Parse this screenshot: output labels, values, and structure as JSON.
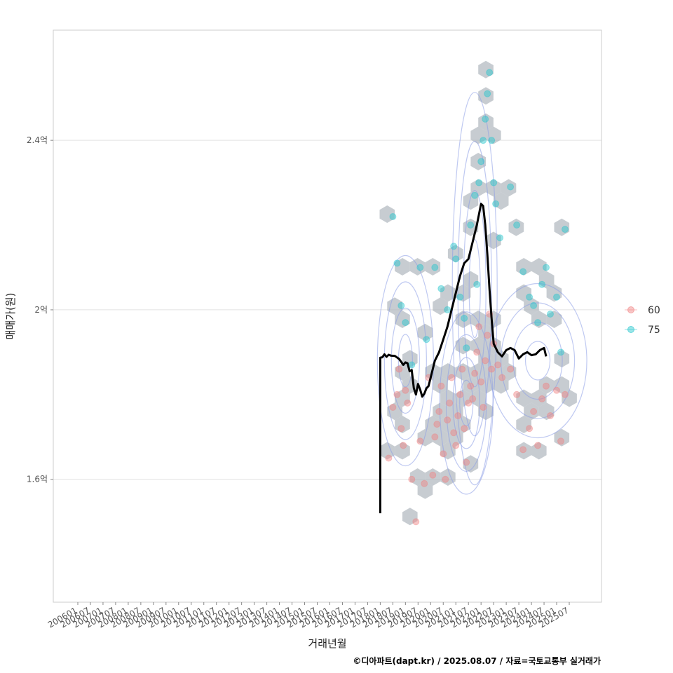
{
  "chart_data": {
    "type": "scatter",
    "xlabel": "거래년월",
    "ylabel": "매매가(원)",
    "caption": "©디아파트(dapt.kr) / 2025.08.07 / 자료=국토교통부 실거래가",
    "x_ticks": [
      "200601",
      "200607",
      "200701",
      "200707",
      "200801",
      "200807",
      "200901",
      "200907",
      "201001",
      "201007",
      "201101",
      "201107",
      "201201",
      "201207",
      "201301",
      "201307",
      "201401",
      "201407",
      "201501",
      "201507",
      "201601",
      "201607",
      "201701",
      "201707",
      "201801",
      "201807",
      "201901",
      "201907",
      "202001",
      "202007",
      "202101",
      "202107",
      "202201",
      "202207",
      "202301",
      "202307",
      "202401",
      "202407",
      "202501",
      "202507"
    ],
    "x_range": [
      "2006-01",
      "2025-07"
    ],
    "y_ticks": [
      {
        "label": "1.6억",
        "value": 160000000
      },
      {
        "label": "2억",
        "value": 200000000
      },
      {
        "label": "2.4억",
        "value": 240000000
      }
    ],
    "ylim": [
      131000000,
      266000000
    ],
    "grid": true,
    "legend_position": "right",
    "colors": {
      "s60": "#f08080",
      "s75": "#22c5cc",
      "hex": "#a9b0b8",
      "contour": "#8a9de6",
      "trend": "#000000",
      "grid": "#e2e2e2",
      "panel_border": "#cccccc"
    },
    "series": [
      {
        "name": "60",
        "color": "#f08080",
        "points": [
          [
            "2018-05",
            165
          ],
          [
            "2018-07",
            177
          ],
          [
            "2018-09",
            180
          ],
          [
            "2018-11",
            172
          ],
          [
            "2019-01",
            181
          ],
          [
            "2019-02",
            178
          ],
          [
            "2018-10",
            186
          ],
          [
            "2018-12",
            168
          ],
          [
            "2019-04",
            160
          ],
          [
            "2019-06",
            150
          ],
          [
            "2019-08",
            169
          ],
          [
            "2019-10",
            159
          ],
          [
            "2019-12",
            184
          ],
          [
            "2020-02",
            161
          ],
          [
            "2020-03",
            170
          ],
          [
            "2020-04",
            173
          ],
          [
            "2020-05",
            176
          ],
          [
            "2020-06",
            182
          ],
          [
            "2020-07",
            166
          ],
          [
            "2020-08",
            160
          ],
          [
            "2020-09",
            174
          ],
          [
            "2020-10",
            178
          ],
          [
            "2020-11",
            184
          ],
          [
            "2020-12",
            171
          ],
          [
            "2021-01",
            168
          ],
          [
            "2021-02",
            175
          ],
          [
            "2021-03",
            180
          ],
          [
            "2021-04",
            186
          ],
          [
            "2021-05",
            172
          ],
          [
            "2021-06",
            164
          ],
          [
            "2021-07",
            178
          ],
          [
            "2021-08",
            182
          ],
          [
            "2021-09",
            179
          ],
          [
            "2021-10",
            185
          ],
          [
            "2021-11",
            190
          ],
          [
            "2021-12",
            196
          ],
          [
            "2022-01",
            183
          ],
          [
            "2022-02",
            177
          ],
          [
            "2022-03",
            188
          ],
          [
            "2022-04",
            194
          ],
          [
            "2022-05",
            199
          ],
          [
            "2022-06",
            186
          ],
          [
            "2022-07",
            192
          ],
          [
            "2022-09",
            187
          ],
          [
            "2022-11",
            184
          ],
          [
            "2023-03",
            186
          ],
          [
            "2023-06",
            180
          ],
          [
            "2023-09",
            167
          ],
          [
            "2023-12",
            172
          ],
          [
            "2024-02",
            176
          ],
          [
            "2024-04",
            168
          ],
          [
            "2024-06",
            179
          ],
          [
            "2024-08",
            182
          ],
          [
            "2024-10",
            175
          ],
          [
            "2025-01",
            181
          ],
          [
            "2025-03",
            169
          ],
          [
            "2025-05",
            180
          ]
        ]
      },
      {
        "name": "75",
        "color": "#22c5cc",
        "points": [
          [
            "2018-07",
            222
          ],
          [
            "2018-09",
            211
          ],
          [
            "2018-11",
            201
          ],
          [
            "2019-01",
            197
          ],
          [
            "2019-04",
            187
          ],
          [
            "2019-08",
            210
          ],
          [
            "2019-11",
            193
          ],
          [
            "2020-03",
            210
          ],
          [
            "2020-06",
            205
          ],
          [
            "2020-09",
            200
          ],
          [
            "2020-12",
            215
          ],
          [
            "2021-01",
            212
          ],
          [
            "2021-03",
            203
          ],
          [
            "2021-05",
            198
          ],
          [
            "2021-06",
            191
          ],
          [
            "2021-08",
            220
          ],
          [
            "2021-10",
            227
          ],
          [
            "2021-11",
            206
          ],
          [
            "2021-12",
            230
          ],
          [
            "2022-01",
            235
          ],
          [
            "2022-02",
            240
          ],
          [
            "2022-03",
            245
          ],
          [
            "2022-04",
            251
          ],
          [
            "2022-05",
            256
          ],
          [
            "2022-06",
            240
          ],
          [
            "2022-07",
            230
          ],
          [
            "2022-08",
            225
          ],
          [
            "2022-10",
            217
          ],
          [
            "2023-03",
            229
          ],
          [
            "2023-06",
            220
          ],
          [
            "2023-09",
            209
          ],
          [
            "2023-12",
            203
          ],
          [
            "2024-02",
            201
          ],
          [
            "2024-04",
            197
          ],
          [
            "2024-06",
            206
          ],
          [
            "2024-08",
            210
          ],
          [
            "2024-10",
            199
          ],
          [
            "2025-01",
            203
          ],
          [
            "2025-03",
            190
          ],
          [
            "2025-05",
            219
          ]
        ]
      }
    ],
    "trend_line": [
      [
        "2018-01",
        152
      ],
      [
        "2018-01",
        188.7
      ],
      [
        "2018-02",
        188.8
      ],
      [
        "2018-03",
        189.5
      ],
      [
        "2018-04",
        188.9
      ],
      [
        "2018-05",
        189.4
      ],
      [
        "2018-06",
        189.2
      ],
      [
        "2018-08",
        189.1
      ],
      [
        "2018-10",
        188.4
      ],
      [
        "2018-12",
        187.0
      ],
      [
        "2019-01",
        187.6
      ],
      [
        "2019-02",
        187.4
      ],
      [
        "2019-03",
        185.5
      ],
      [
        "2019-04",
        185.8
      ],
      [
        "2019-05",
        181.5
      ],
      [
        "2019-06",
        180.0
      ],
      [
        "2019-07",
        182.5
      ],
      [
        "2019-08",
        181.2
      ],
      [
        "2019-09",
        179.5
      ],
      [
        "2019-10",
        180.2
      ],
      [
        "2019-11",
        181.5
      ],
      [
        "2019-12",
        182.0
      ],
      [
        "2020-01",
        184.0
      ],
      [
        "2020-03",
        188.0
      ],
      [
        "2020-05",
        190.0
      ],
      [
        "2020-07",
        193.0
      ],
      [
        "2020-09",
        196.0
      ],
      [
        "2020-11",
        200.0
      ],
      [
        "2021-01",
        204.0
      ],
      [
        "2021-03",
        208.0
      ],
      [
        "2021-05",
        211.0
      ],
      [
        "2021-07",
        212.0
      ],
      [
        "2021-09",
        216.0
      ],
      [
        "2021-11",
        220.0
      ],
      [
        "2022-01",
        225.0
      ],
      [
        "2022-02",
        224.5
      ],
      [
        "2022-03",
        220.0
      ],
      [
        "2022-04",
        213.0
      ],
      [
        "2022-05",
        205.0
      ],
      [
        "2022-06",
        198.0
      ],
      [
        "2022-07",
        192.0
      ],
      [
        "2022-09",
        190.0
      ],
      [
        "2022-11",
        189.0
      ],
      [
        "2023-01",
        190.5
      ],
      [
        "2023-03",
        191.0
      ],
      [
        "2023-05",
        190.5
      ],
      [
        "2023-07",
        188.5
      ],
      [
        "2023-09",
        189.5
      ],
      [
        "2023-11",
        190.0
      ],
      [
        "2024-01",
        189.3
      ],
      [
        "2024-03",
        189.5
      ],
      [
        "2024-05",
        190.5
      ],
      [
        "2024-07",
        191.0
      ],
      [
        "2024-08",
        189.0
      ]
    ]
  }
}
